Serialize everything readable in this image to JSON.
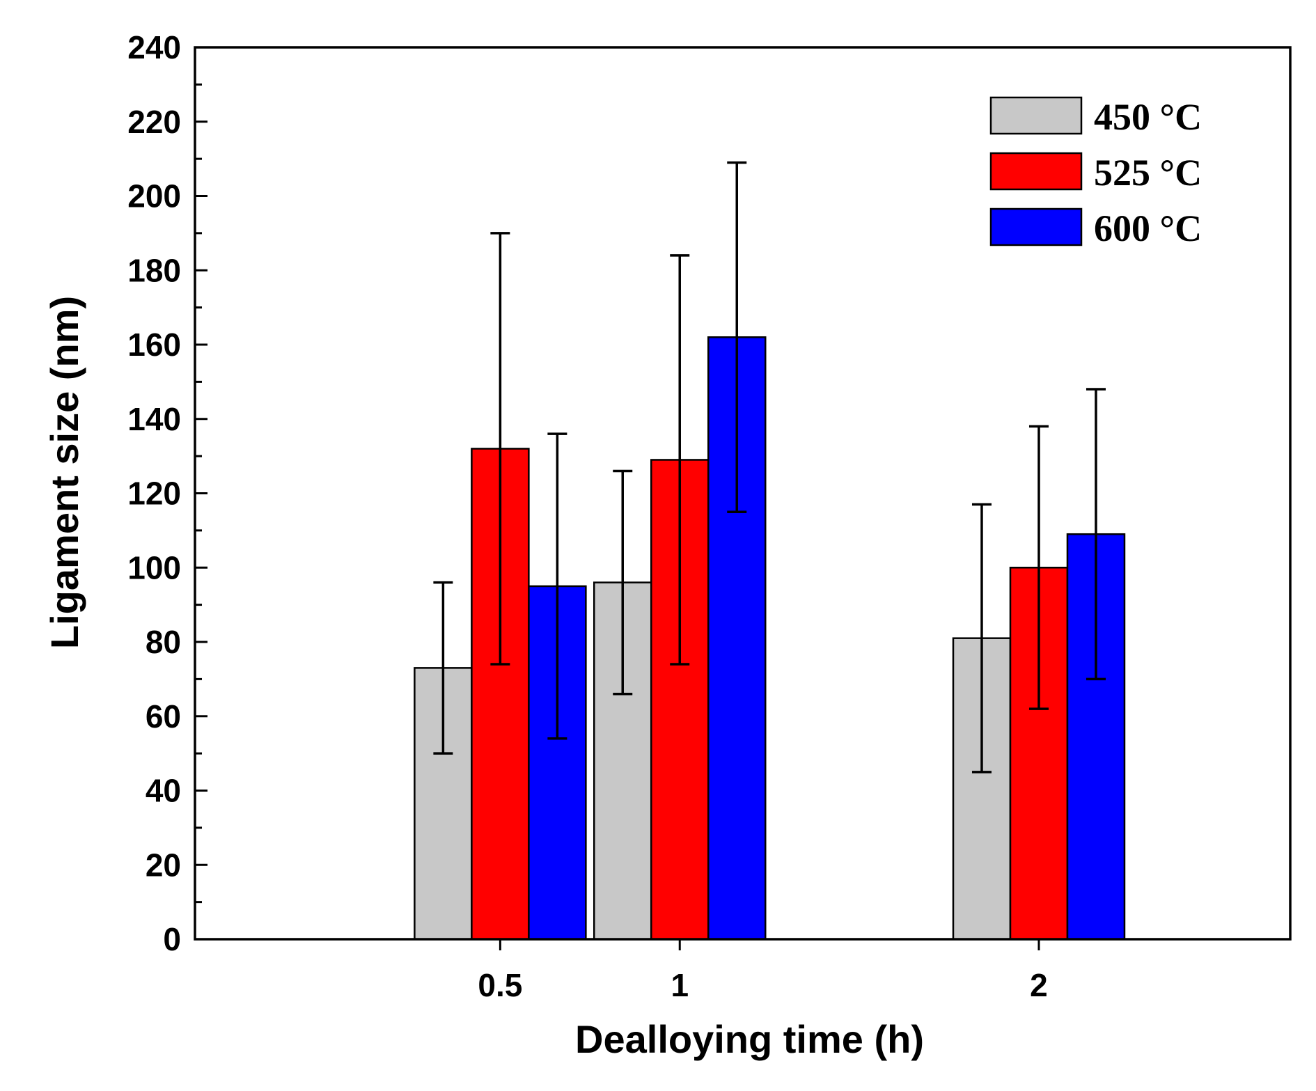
{
  "chart_data": {
    "type": "bar",
    "title": "",
    "xlabel": "Dealloying time (h)",
    "ylabel": "Ligament size (nm)",
    "x_values": [
      0.5,
      1,
      2
    ],
    "xlim": [
      -0.35,
      2.7
    ],
    "x_tick_labels": [
      "0.5",
      "1",
      "2"
    ],
    "ylim": [
      0,
      240
    ],
    "y_major_step": 20,
    "y_minor_step": 10,
    "y_tick_labels": [
      "0",
      "20",
      "40",
      "60",
      "80",
      "100",
      "120",
      "140",
      "160",
      "180",
      "200",
      "220",
      "240"
    ],
    "grid": false,
    "legend_position": "top-right",
    "series": [
      {
        "name": "450 °C",
        "color": "#c8c8c8",
        "values": [
          73,
          96,
          81
        ],
        "errors": [
          23,
          30,
          36
        ]
      },
      {
        "name": "525 °C",
        "color": "#ff0000",
        "values": [
          132,
          129,
          100
        ],
        "errors": [
          58,
          55,
          38
        ]
      },
      {
        "name": "600 °C",
        "color": "#0000ff",
        "values": [
          95,
          162,
          109
        ],
        "errors": [
          41,
          47,
          39
        ]
      }
    ]
  }
}
